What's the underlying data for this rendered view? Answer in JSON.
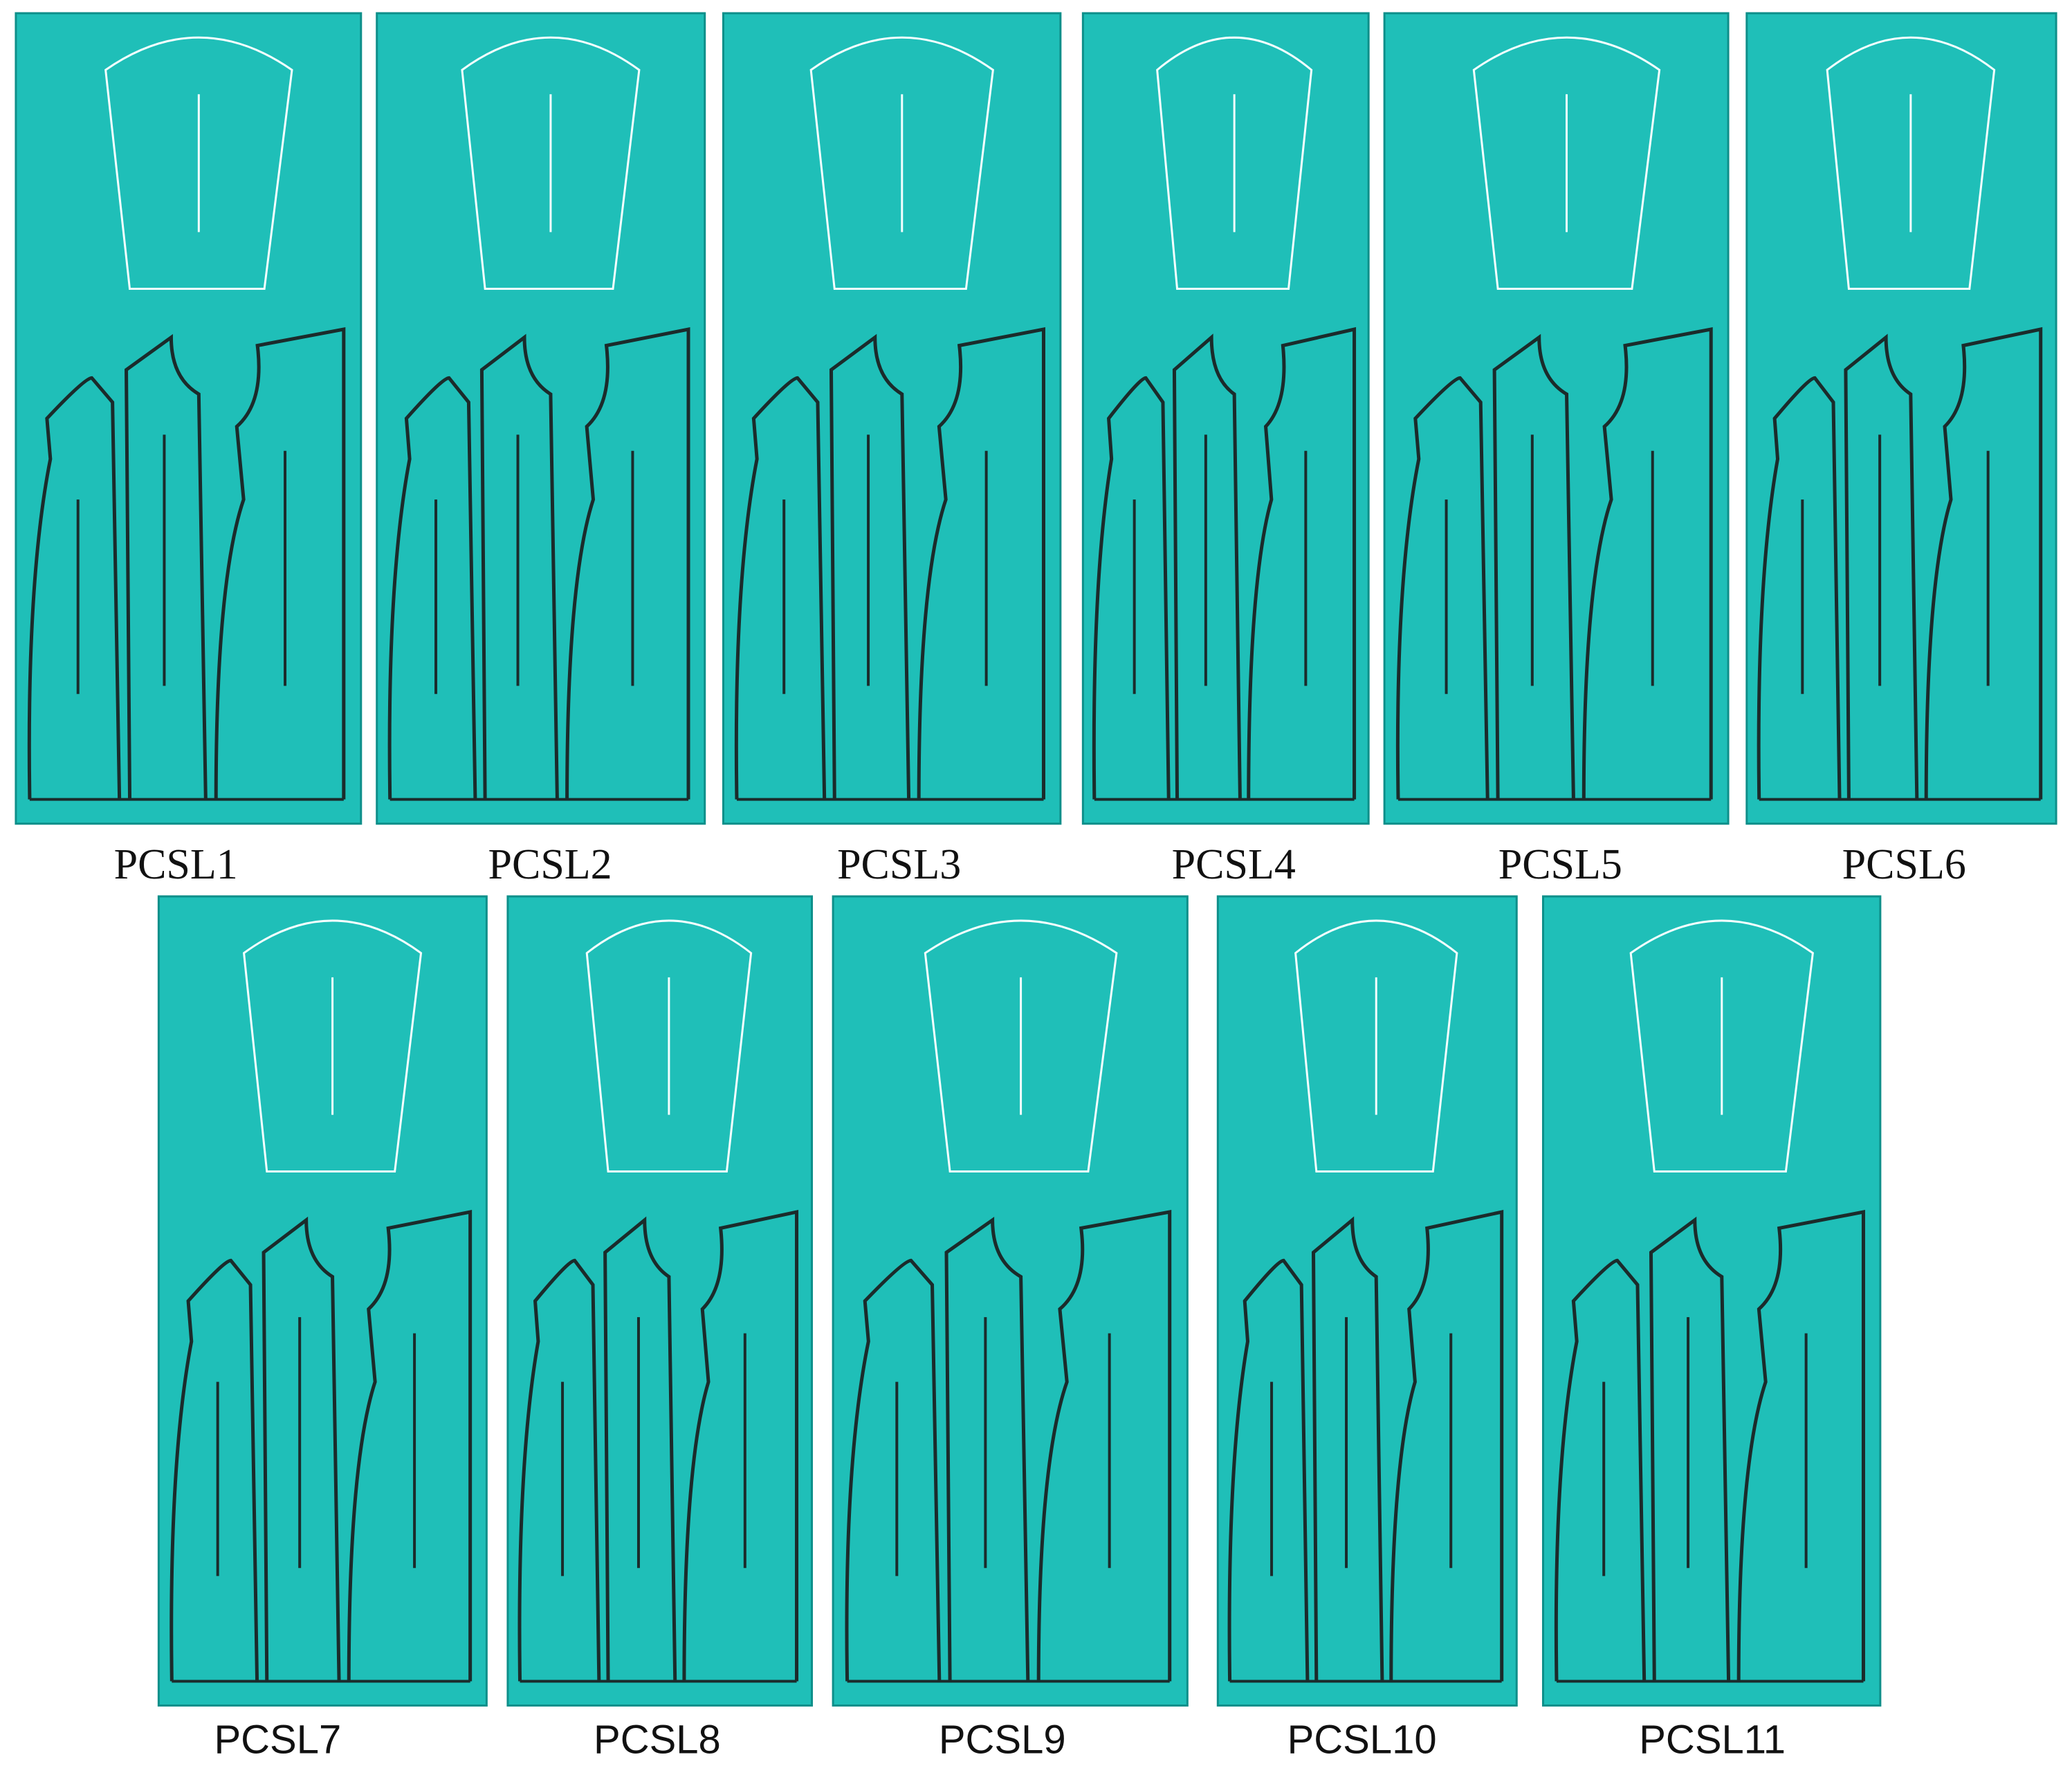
{
  "panels": [
    {
      "label": "PCSL1"
    },
    {
      "label": "PCSL2"
    },
    {
      "label": "PCSL3"
    },
    {
      "label": "PCSL4"
    },
    {
      "label": "PCSL5"
    },
    {
      "label": "PCSL6"
    },
    {
      "label": "PCSL7"
    },
    {
      "label": "PCSL8"
    },
    {
      "label": "PCSL9"
    },
    {
      "label": "PCSL10"
    },
    {
      "label": "PCSL11"
    }
  ]
}
